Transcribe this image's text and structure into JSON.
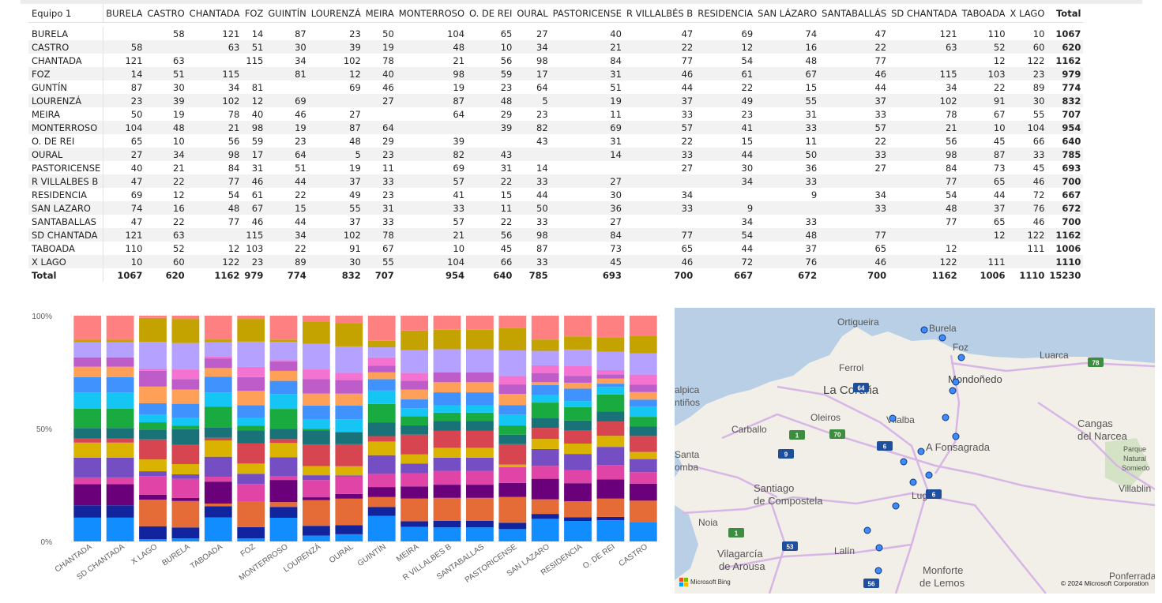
{
  "matrix": {
    "corner": "Equipo 1",
    "columns": [
      "BURELA",
      "CASTRO",
      "CHANTADA",
      "FOZ",
      "GUINTÍN",
      "LOURENZÁ",
      "MEIRA",
      "MONTERROSO",
      "O. DE REI",
      "OURAL",
      "PASTORICENSE",
      "R VILLALBÉS B",
      "RESIDENCIA",
      "SAN LÁZARO",
      "SANTABALLÁS",
      "SD CHANTADA",
      "TABOADA",
      "X LAGO",
      "Total"
    ],
    "rows": [
      {
        "label": "BURELA",
        "cells": [
          "",
          "58",
          "121",
          "14",
          "87",
          "23",
          "50",
          "104",
          "65",
          "27",
          "40",
          "47",
          "69",
          "74",
          "47",
          "121",
          "110",
          "10",
          "1067"
        ]
      },
      {
        "label": "CASTRO",
        "cells": [
          "58",
          "",
          "63",
          "51",
          "30",
          "39",
          "19",
          "48",
          "10",
          "34",
          "21",
          "22",
          "12",
          "16",
          "22",
          "63",
          "52",
          "60",
          "620"
        ]
      },
      {
        "label": "CHANTADA",
        "cells": [
          "121",
          "63",
          "",
          "115",
          "34",
          "102",
          "78",
          "21",
          "56",
          "98",
          "84",
          "77",
          "54",
          "48",
          "77",
          "",
          "12",
          "122",
          "1162"
        ]
      },
      {
        "label": "FOZ",
        "cells": [
          "14",
          "51",
          "115",
          "",
          "81",
          "12",
          "40",
          "98",
          "59",
          "17",
          "31",
          "46",
          "61",
          "67",
          "46",
          "115",
          "103",
          "23",
          "979"
        ]
      },
      {
        "label": "GUNTÍN",
        "cells": [
          "87",
          "30",
          "34",
          "81",
          "",
          "69",
          "46",
          "19",
          "23",
          "64",
          "51",
          "44",
          "22",
          "15",
          "44",
          "34",
          "22",
          "89",
          "774"
        ]
      },
      {
        "label": "LOURENZÁ",
        "cells": [
          "23",
          "39",
          "102",
          "12",
          "69",
          "",
          "27",
          "87",
          "48",
          "5",
          "19",
          "37",
          "49",
          "55",
          "37",
          "102",
          "91",
          "30",
          "832"
        ]
      },
      {
        "label": "MEIRA",
        "cells": [
          "50",
          "19",
          "78",
          "40",
          "46",
          "27",
          "",
          "64",
          "29",
          "23",
          "11",
          "33",
          "23",
          "31",
          "33",
          "78",
          "67",
          "55",
          "707"
        ]
      },
      {
        "label": "MONTERROSO",
        "cells": [
          "104",
          "48",
          "21",
          "98",
          "19",
          "87",
          "64",
          "",
          "39",
          "82",
          "69",
          "57",
          "41",
          "33",
          "57",
          "21",
          "10",
          "104",
          "954"
        ]
      },
      {
        "label": "O. DE REI",
        "cells": [
          "65",
          "10",
          "56",
          "59",
          "23",
          "48",
          "29",
          "39",
          "",
          "43",
          "31",
          "22",
          "15",
          "11",
          "22",
          "56",
          "45",
          "66",
          "640"
        ]
      },
      {
        "label": "OURAL",
        "cells": [
          "27",
          "34",
          "98",
          "17",
          "64",
          "5",
          "23",
          "82",
          "43",
          "",
          "14",
          "33",
          "44",
          "50",
          "33",
          "98",
          "87",
          "33",
          "785"
        ]
      },
      {
        "label": "PASTORICENSE",
        "cells": [
          "40",
          "21",
          "84",
          "31",
          "51",
          "19",
          "11",
          "69",
          "31",
          "14",
          "",
          "27",
          "30",
          "36",
          "27",
          "84",
          "73",
          "45",
          "693"
        ]
      },
      {
        "label": "R VILLALBES B",
        "cells": [
          "47",
          "22",
          "77",
          "46",
          "44",
          "37",
          "33",
          "57",
          "22",
          "33",
          "27",
          "",
          "34",
          "33",
          "",
          "77",
          "65",
          "46",
          "700"
        ]
      },
      {
        "label": "RESIDENCIA",
        "cells": [
          "69",
          "12",
          "54",
          "61",
          "22",
          "49",
          "23",
          "41",
          "15",
          "44",
          "30",
          "34",
          "",
          "9",
          "34",
          "54",
          "44",
          "72",
          "667"
        ]
      },
      {
        "label": "SAN LAZARO",
        "cells": [
          "74",
          "16",
          "48",
          "67",
          "15",
          "55",
          "31",
          "33",
          "11",
          "50",
          "36",
          "33",
          "9",
          "",
          "33",
          "48",
          "37",
          "76",
          "672"
        ]
      },
      {
        "label": "SANTABALLAS",
        "cells": [
          "47",
          "22",
          "77",
          "46",
          "44",
          "37",
          "33",
          "57",
          "22",
          "33",
          "27",
          "",
          "34",
          "33",
          "",
          "77",
          "65",
          "46",
          "700"
        ]
      },
      {
        "label": "SD CHANTADA",
        "cells": [
          "121",
          "63",
          "",
          "115",
          "34",
          "102",
          "78",
          "21",
          "56",
          "98",
          "84",
          "77",
          "54",
          "48",
          "77",
          "",
          "12",
          "122",
          "1162"
        ]
      },
      {
        "label": "TABOADA",
        "cells": [
          "110",
          "52",
          "12",
          "103",
          "22",
          "91",
          "67",
          "10",
          "45",
          "87",
          "73",
          "65",
          "44",
          "37",
          "65",
          "12",
          "",
          "111",
          "1006"
        ]
      },
      {
        "label": "X LAGO",
        "cells": [
          "10",
          "60",
          "122",
          "23",
          "89",
          "30",
          "55",
          "104",
          "66",
          "33",
          "45",
          "46",
          "72",
          "76",
          "46",
          "122",
          "111",
          "",
          "1110"
        ]
      }
    ],
    "total_row": {
      "label": "Total",
      "cells": [
        "1067",
        "620",
        "1162",
        "979",
        "774",
        "832",
        "707",
        "954",
        "640",
        "785",
        "693",
        "700",
        "667",
        "672",
        "700",
        "1162",
        "1006",
        "1110",
        "15230"
      ]
    }
  },
  "chart_data": {
    "type": "bar",
    "stacked": "100%",
    "categories": [
      "CHANTADA",
      "SD CHANTADA",
      "X LAGO",
      "BURELA",
      "TABOADA",
      "FOZ",
      "MONTERROSO",
      "LOURENZÁ",
      "OURAL",
      "GUINTÍN",
      "MEIRA",
      "R VILLALBES B",
      "SANTABALLAS",
      "PASTORICENSE",
      "SAN LAZARO",
      "RESIDENCIA",
      "O. DE REI",
      "CASTRO"
    ],
    "y_ticks": [
      "0%",
      "50%",
      "100%"
    ],
    "ylim": [
      0,
      100
    ],
    "grid": true,
    "series": [
      {
        "color": "#118dff",
        "values": [
          10.4,
          10.4,
          0.9,
          1.3,
          10.9,
          1.4,
          10.9,
          2.8,
          3.4,
          11.2,
          7.1,
          6.7,
          6.7,
          5.8,
          11.0,
          10.3,
          10.2,
          9.4
        ]
      },
      {
        "color": "#12239e",
        "values": [
          5.4,
          5.4,
          5.4,
          4.7,
          5.1,
          5.2,
          5.0,
          4.7,
          4.3,
          3.9,
          2.7,
          3.1,
          3.1,
          3.0,
          2.4,
          1.8,
          1.6,
          0.0
        ]
      },
      {
        "color": "#e66c37",
        "values": [
          0.0,
          0.0,
          11.0,
          11.3,
          1.2,
          11.7,
          2.2,
          12.3,
          12.5,
          4.4,
          11.0,
          11.0,
          11.0,
          12.1,
          7.1,
          8.1,
          8.8,
          10.2
        ]
      },
      {
        "color": "#6b007b",
        "values": [
          9.3,
          9.3,
          2.1,
          1.3,
          10.0,
          0.0,
          10.2,
          1.4,
          2.2,
          4.4,
          5.9,
          6.3,
          6.3,
          6.6,
          10.0,
          9.1,
          9.2,
          8.2
        ]
      },
      {
        "color": "#e044a7",
        "values": [
          2.9,
          2.9,
          7.7,
          8.2,
          2.2,
          8.3,
          1.6,
          8.3,
          8.2,
          5.8,
          6.4,
          6.6,
          6.6,
          7.4,
          6.3,
          6.6,
          6.9,
          5.5
        ]
      },
      {
        "color": "#744ec2",
        "values": [
          8.6,
          8.6,
          2.0,
          1.9,
          9.1,
          4.7,
          8.8,
          2.3,
          0.6,
          8.2,
          4.7,
          6.3,
          6.3,
          0.0,
          8.2,
          8.1,
          8.8,
          6.3
        ]
      },
      {
        "color": "#d9b300",
        "values": [
          6.6,
          6.6,
          4.9,
          4.4,
          7.4,
          4.7,
          6.6,
          4.4,
          4.3,
          6.0,
          4.4,
          4.7,
          4.7,
          1.2,
          4.9,
          5.2,
          5.3,
          3.4
        ]
      },
      {
        "color": "#d64550",
        "values": [
          1.8,
          1.8,
          8.3,
          8.3,
          1.2,
          9.3,
          1.8,
          10.4,
          10.4,
          2.4,
          9.6,
          8.1,
          8.1,
          9.6,
          5.4,
          6.5,
          6.9,
          7.7
        ]
      },
      {
        "color": "#197278",
        "values": [
          4.6,
          4.6,
          4.1,
          6.6,
          4.7,
          6.0,
          4.8,
          6.8,
          5.7,
          5.9,
          4.5,
          4.7,
          4.7,
          4.5,
          4.9,
          5.1,
          4.9,
          4.5
        ]
      },
      {
        "color": "#1aab40",
        "values": [
          8.5,
          8.5,
          3.0,
          1.6,
          9.5,
          2.3,
          9.1,
          0.6,
          0.0,
          8.2,
          4.5,
          4.0,
          4.0,
          4.3,
          7.4,
          6.7,
          8.1,
          4.7
        ]
      },
      {
        "color": "#15c6f4",
        "values": [
          7.1,
          7.1,
          3.3,
          3.2,
          6.4,
          3.4,
          6.9,
          4.6,
          6.1,
          5.9,
          3.8,
          3.5,
          3.5,
          5.1,
          3.7,
          3.1,
          3.6,
          4.9
        ]
      },
      {
        "color": "#4092ff",
        "values": [
          6.6,
          6.6,
          4.6,
          6.1,
          7.1,
          6.0,
          6.0,
          6.6,
          6.4,
          5.0,
          4.3,
          6.2,
          6.2,
          4.5,
          4.9,
          6.2,
          1.6,
          3.4
        ]
      },
      {
        "color": "#ffa058",
        "values": [
          4.6,
          4.6,
          6.9,
          6.1,
          4.0,
          6.6,
          4.6,
          5.8,
          5.7,
          3.0,
          4.7,
          4.8,
          4.8,
          5.2,
          1.3,
          3.0,
          2.5,
          3.6
        ]
      },
      {
        "color": "#be5dc9",
        "values": [
          4.1,
          4.1,
          6.6,
          4.5,
          4.4,
          6.4,
          4.3,
          6.9,
          6.5,
          3.0,
          4.3,
          4.8,
          4.8,
          4.5,
          4.5,
          3.5,
          2.0,
          3.5
        ]
      },
      {
        "color": "#f472d0",
        "values": [
          0.0,
          0.0,
          0.9,
          4.1,
          0.9,
          4.7,
          0.6,
          4.7,
          3.3,
          3.6,
          3.9,
          0.0,
          0.0,
          3.9,
          3.7,
          5.1,
          2.0,
          4.9
        ]
      },
      {
        "color": "#b5a1ff",
        "values": [
          6.6,
          6.6,
          11.0,
          11.3,
          6.5,
          11.7,
          8.5,
          12.3,
          12.5,
          4.4,
          11.0,
          11.0,
          11.0,
          12.1,
          7.1,
          8.1,
          8.8,
          10.2
        ]
      },
      {
        "color": "#c4a200",
        "values": [
          1.1,
          1.1,
          10.0,
          10.3,
          1.2,
          10.5,
          1.0,
          10.7,
          11.1,
          2.9,
          9.5,
          9.3,
          9.3,
          10.5,
          5.5,
          6.6,
          7.0,
          8.4
        ]
      },
      {
        "color": "#ff8080",
        "values": [
          10.5,
          10.5,
          0.9,
          1.4,
          10.8,
          1.5,
          11.0,
          2.8,
          3.4,
          11.0,
          7.2,
          6.7,
          6.7,
          5.8,
          11.6,
          10.4,
          10.4,
          9.7
        ]
      }
    ]
  },
  "map": {
    "places": [
      {
        "name": "Ortigueira"
      },
      {
        "name": "Burela"
      },
      {
        "name": "Foz"
      },
      {
        "name": "Luarca"
      },
      {
        "name": "Ferrol"
      },
      {
        "name": "La Coruña"
      },
      {
        "name": "Mondoñedo"
      },
      {
        "name": "alpica"
      },
      {
        "name": "ntiños"
      },
      {
        "name": "Oleiros"
      },
      {
        "name": "Carballo"
      },
      {
        "name": "Vilalba"
      },
      {
        "name": "Cangas"
      },
      {
        "name": "del Narcea"
      },
      {
        "name": "A Fonsagrada"
      },
      {
        "name": "Santa"
      },
      {
        "name": "omba"
      },
      {
        "name": "Lugo"
      },
      {
        "name": "Parque"
      },
      {
        "name": "Natural"
      },
      {
        "name": "Somiedo"
      },
      {
        "name": "Santiago"
      },
      {
        "name": "de Compostela"
      },
      {
        "name": "Villablin"
      },
      {
        "name": "Noia"
      },
      {
        "name": "Lalín"
      },
      {
        "name": "Vilagarcía"
      },
      {
        "name": "de Arousa"
      },
      {
        "name": "Monforte"
      },
      {
        "name": "de Lemos"
      },
      {
        "name": "Ponferrada"
      }
    ],
    "road_shields": [
      "78",
      "64",
      "70",
      "1",
      "9",
      "6",
      "6",
      "1",
      "53",
      "56"
    ],
    "attribution_logo": "Microsoft Bing",
    "copyright": "© 2024 Microsoft Corporation"
  }
}
